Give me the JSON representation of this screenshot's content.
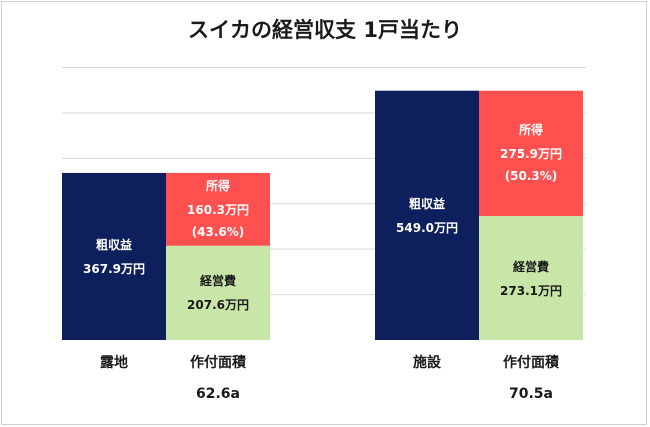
{
  "chart_data": {
    "type": "bar",
    "stacked": true,
    "title": "スイカの経営収支 1戸当たり",
    "ylim": [
      0,
      600
    ],
    "grid": true,
    "colors": {
      "gross": "#0d1f5c",
      "income": "#ff5050",
      "cost": "#c9e6a9",
      "grid": "#d9d9d9"
    },
    "groups": [
      {
        "name": "露地",
        "area_label": "作付面積",
        "area_value": "62.6a",
        "gross": {
          "label": "粗収益",
          "value": 367.9,
          "value_text": "367.9万円"
        },
        "income": {
          "label": "所得",
          "value": 160.3,
          "value_text": "160.3万円",
          "share_text": "(43.6%)"
        },
        "cost": {
          "label": "経営費",
          "value": 207.6,
          "value_text": "207.6万円"
        }
      },
      {
        "name": "施設",
        "area_label": "作付面積",
        "area_value": "70.5a",
        "gross": {
          "label": "粗収益",
          "value": 549.0,
          "value_text": "549.0万円"
        },
        "income": {
          "label": "所得",
          "value": 275.9,
          "value_text": "275.9万円",
          "share_text": "(50.3%)"
        },
        "cost": {
          "label": "経営費",
          "value": 273.1,
          "value_text": "273.1万円"
        }
      }
    ]
  }
}
